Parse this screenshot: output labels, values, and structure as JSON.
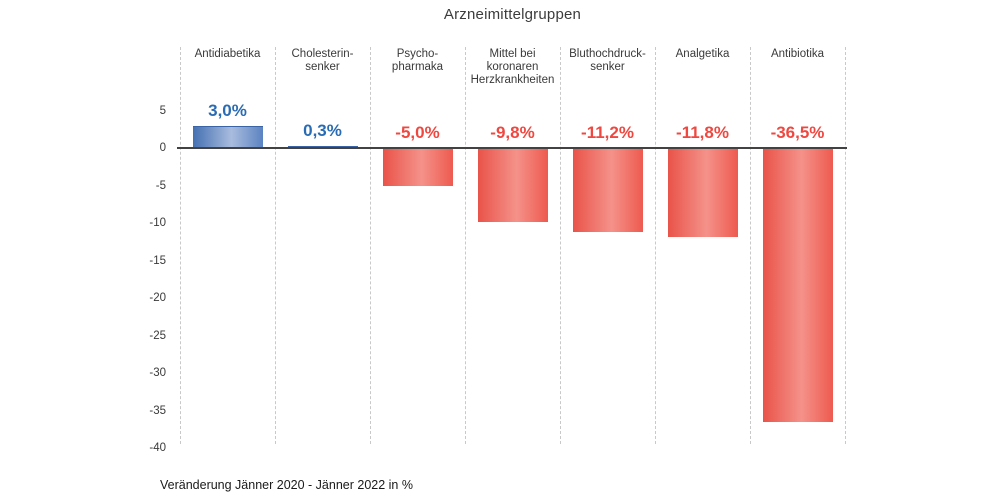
{
  "title": "Arzneimittelgruppen",
  "footnote": "Veränderung Jänner 2020 - Jänner 2022 in %",
  "colors": {
    "positive_bar_left": "#4470b2",
    "positive_bar_mid": "#a9bcde",
    "positive_bar_right": "#5b83c1",
    "positive_bar_top_edge": "#3a64a6",
    "negative_bar_left": "#e95349",
    "negative_bar_mid": "#f4928a",
    "negative_bar_right": "#ee5a4f",
    "positive_label": "#2a6cb3",
    "negative_label": "#ef4840",
    "axis_line": "#424242",
    "separator": "#c9c9c9",
    "text": "#3a3a3a"
  },
  "chart_data": {
    "type": "bar",
    "title": "Arzneimittelgruppen",
    "categories": [
      "Antidiabetika",
      "Cholesterin-\nsenker",
      "Psycho-\npharmaka",
      "Mittel bei\nkoronaren\nHerzkrankheiten",
      "Bluthochdruck-\nsenker",
      "Analgetika",
      "Antibiotika"
    ],
    "values": [
      3.0,
      0.3,
      -5.0,
      -9.8,
      -11.2,
      -11.8,
      -36.5
    ],
    "value_labels": [
      "3,0%",
      "0,3%",
      "-5,0%",
      "-9,8%",
      "-11,2%",
      "-11,8%",
      "-36,5%"
    ],
    "xlabel": "",
    "ylabel": "",
    "ylim": [
      -40,
      5
    ],
    "yticks": [
      5,
      0,
      -5,
      -10,
      -15,
      -20,
      -25,
      -30,
      -35,
      -40
    ],
    "grid": "vertical dashed category separators only",
    "legend_position": "none",
    "footnote": "Veränderung Jänner 2020 - Jänner 2022 in %",
    "positive_color_meaning": "increase (blue)",
    "negative_color_meaning": "decrease (red)"
  }
}
